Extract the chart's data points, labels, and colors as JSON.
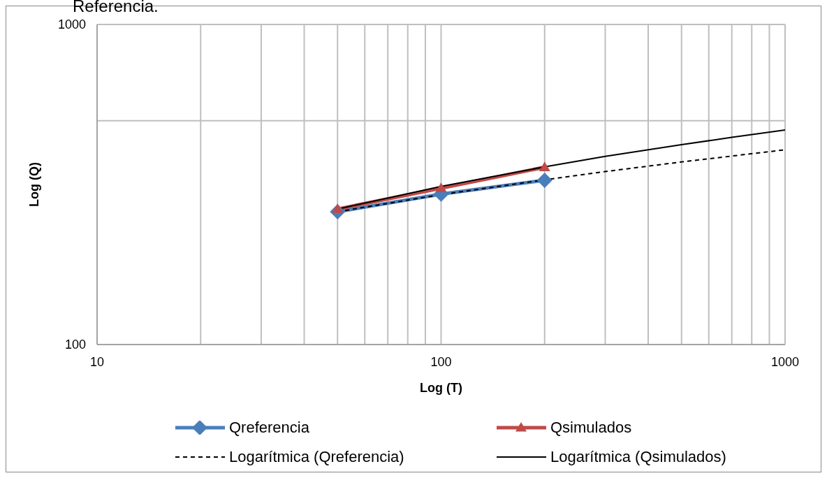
{
  "chart_data": {
    "type": "line",
    "xlabel": "Log (T)",
    "ylabel": "Log (Q)",
    "annotations": [
      "Referencia."
    ],
    "log": "xy",
    "grid": true,
    "legend": "bottom",
    "xlim": [
      10,
      1000
    ],
    "ylim": [
      100,
      1000
    ],
    "xticks": [
      10,
      {
        "value": 20,
        "label": null
      },
      {
        "value": 30,
        "label": null
      },
      {
        "value": 40,
        "label": null
      },
      {
        "value": 50,
        "label": null
      },
      {
        "value": 60,
        "label": null
      },
      {
        "value": 70,
        "label": null
      },
      {
        "value": 80,
        "label": null
      },
      {
        "value": 90,
        "label": null
      },
      100,
      {
        "value": 200,
        "label": null
      },
      {
        "value": 300,
        "label": null
      },
      {
        "value": 400,
        "label": null
      },
      {
        "value": 500,
        "label": null
      },
      {
        "value": 600,
        "label": null
      },
      {
        "value": 700,
        "label": null
      },
      {
        "value": 800,
        "label": null
      },
      {
        "value": 900,
        "label": null
      },
      1000
    ],
    "yticks": [
      100,
      {
        "value": 500,
        "label": null
      },
      1000
    ],
    "series": [
      {
        "name": "Qreferencia",
        "color": "#4a7ebb",
        "marker": "diamond",
        "line_style": "solid",
        "x": [
          50,
          100,
          200
        ],
        "values": [
          260,
          295,
          326
        ]
      },
      {
        "name": "Qsimulados",
        "color": "#be4b48",
        "marker": "triangle",
        "line_style": "solid",
        "x": [
          50,
          100,
          200
        ],
        "values": [
          265,
          308,
          358
        ]
      },
      {
        "name": "Logarítmica (Qreferencia)",
        "color": "#000000",
        "marker": "none",
        "line_style": "dashed",
        "x": [
          50,
          100,
          200,
          300,
          500,
          700,
          1000
        ],
        "values": [
          260,
          294,
          327,
          347,
          372,
          388,
          406
        ]
      },
      {
        "name": "Logarítmica (Qsimulados)",
        "color": "#000000",
        "marker": "none",
        "line_style": "solid",
        "x": [
          50,
          100,
          200,
          300,
          500,
          700,
          1000
        ],
        "values": [
          265,
          312,
          359,
          387,
          421,
          444,
          468
        ]
      }
    ]
  }
}
